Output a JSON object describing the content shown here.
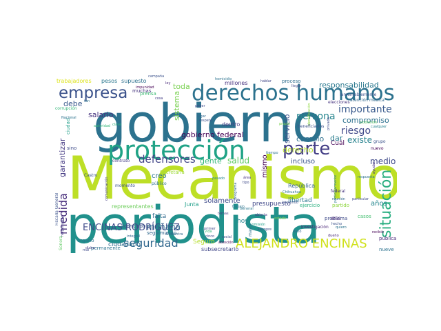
{
  "wordcloud": {
    "words": [
      {
        "text": "gobierno",
        "color": "#2c728e"
      },
      {
        "text": "Mecanismo",
        "color": "#bddf26"
      },
      {
        "text": "periodista",
        "color": "#21918c"
      },
      {
        "text": "protección",
        "color": "#20a386"
      },
      {
        "text": "derechos humanos",
        "color": "#2c728e"
      },
      {
        "text": "empresa",
        "color": "#3b528b"
      },
      {
        "text": "parte",
        "color": "#433e85"
      },
      {
        "text": "situación",
        "color": "#28ae80"
      },
      {
        "text": "ALEJANDRO ENCINAS",
        "color": "#d0e11c"
      },
      {
        "text": "ENCINAS RODRÍGUEZ",
        "color": "#3e4a89"
      },
      {
        "text": "seguridad",
        "color": "#31688e"
      },
      {
        "text": "medida",
        "color": "#472d7b"
      },
      {
        "text": "defensores",
        "color": "#414487"
      },
      {
        "text": "responsabilidad",
        "color": "#2a788e"
      },
      {
        "text": "importante",
        "color": "#38598c"
      },
      {
        "text": "persona",
        "color": "#25858e"
      },
      {
        "text": "riesgo",
        "color": "#3f4889"
      },
      {
        "text": "compromiso",
        "color": "#2d708e"
      },
      {
        "text": "gobierno federal",
        "color": "#440154"
      },
      {
        "text": "mañana",
        "color": "#31688e"
      },
      {
        "text": "salud",
        "color": "#5ec962"
      },
      {
        "text": "gente",
        "color": "#35b779"
      },
      {
        "text": "medio",
        "color": "#3e4989"
      },
      {
        "text": "derecho",
        "color": "#b5de2b"
      },
      {
        "text": "existe",
        "color": "#26828e"
      },
      {
        "text": "cambio",
        "color": "#2e6f8e"
      },
      {
        "text": "dar",
        "color": "#287c8e"
      },
      {
        "text": "servicio",
        "color": "#3b528b"
      },
      {
        "text": "ciudadano",
        "color": "#2f6c8e"
      },
      {
        "text": "Seguro",
        "color": "#b5de2b"
      },
      {
        "text": "solamente",
        "color": "#3e4a89"
      },
      {
        "text": "debe",
        "color": "#38588c"
      },
      {
        "text": "salario",
        "color": "#46337f"
      },
      {
        "text": "toda",
        "color": "#7ad151"
      },
      {
        "text": "sistema",
        "color": "#7ad151"
      },
      {
        "text": "creo",
        "color": "#2b748e"
      },
      {
        "text": "mismo",
        "color": "#440154"
      },
      {
        "text": "incluso",
        "color": "#3a548c"
      },
      {
        "text": "garantizar",
        "color": "#443983"
      },
      {
        "text": "años",
        "color": "#24868e"
      },
      {
        "text": "Cuál",
        "color": "#440154"
      },
      {
        "text": "Junta",
        "color": "#1f9e89"
      },
      {
        "text": "falta",
        "color": "#306a8e"
      },
      {
        "text": "hoy",
        "color": "#25848e"
      },
      {
        "text": "presupuesto",
        "color": "#3f4788"
      },
      {
        "text": "subsecretario",
        "color": "#404688"
      },
      {
        "text": "libertad",
        "color": "#2a788e"
      },
      {
        "text": "República",
        "color": "#33638d"
      },
      {
        "text": "supuesto",
        "color": "#2d708e"
      },
      {
        "text": "pesos",
        "color": "#2a778e"
      },
      {
        "text": "trabajadores",
        "color": "#dde318"
      },
      {
        "text": "millones",
        "color": "#46307e"
      },
      {
        "text": "proceso",
        "color": "#2e6e8e"
      },
      {
        "text": "prensa",
        "color": "#3dbc74"
      },
      {
        "text": "muchas",
        "color": "#46337f"
      },
      {
        "text": "representantes",
        "color": "#6ccd5a"
      },
      {
        "text": "Secretaría",
        "color": "#9fda3a"
      },
      {
        "text": "organo",
        "color": "#2a778e"
      },
      {
        "text": "seguimiento",
        "color": "#31688e"
      },
      {
        "text": "licenciado",
        "color": "#3b528b"
      },
      {
        "text": "permanente",
        "color": "#2c728e"
      },
      {
        "text": "dentro",
        "color": "#433e85"
      },
      {
        "text": "sino",
        "color": "#3e4c8a"
      },
      {
        "text": "contrato",
        "color": "#433d84"
      },
      {
        "text": "público",
        "color": "#2c728e"
      },
      {
        "text": "momento",
        "color": "#3b528b"
      },
      {
        "text": "investigación",
        "color": "#482475"
      },
      {
        "text": "ejercicio",
        "color": "#29af7f"
      },
      {
        "text": "partido",
        "color": "#90d743"
      },
      {
        "text": "casos",
        "color": "#44bf70"
      },
      {
        "text": "nueve",
        "color": "#2c728e"
      },
      {
        "text": "grupo",
        "color": "#3b528b"
      },
      {
        "text": "nuevo",
        "color": "#440154"
      },
      {
        "text": "pública",
        "color": "#482878"
      },
      {
        "text": "problema",
        "color": "#3e4a89"
      },
      {
        "text": "atención médica",
        "color": "#31688e"
      },
      {
        "text": "población",
        "color": "#5ec962"
      },
      {
        "text": "cualquier",
        "color": "#26828e"
      },
      {
        "text": "lamentablemente",
        "color": "#3b528b"
      },
      {
        "text": "elecciones",
        "color": "#46337f"
      },
      {
        "text": "corrupción",
        "color": "#35b779"
      },
      {
        "text": "homicidio",
        "color": "#2c728e"
      },
      {
        "text": "hablar",
        "color": "#404688"
      },
      {
        "text": "llegar",
        "color": "#3e4a89"
      },
      {
        "text": "ley",
        "color": "#482878"
      },
      {
        "text": "campaña",
        "color": "#3b528b"
      },
      {
        "text": "impunidad",
        "color": "#440154"
      },
      {
        "text": "cosa",
        "color": "#433e85"
      },
      {
        "text": "poder",
        "color": "#3e4989"
      },
      {
        "text": "lugar",
        "color": "#31688e"
      },
      {
        "text": "respeto",
        "color": "#3b528b"
      },
      {
        "text": "pasado",
        "color": "#26828e"
      },
      {
        "text": "propio",
        "color": "#7ad151"
      },
      {
        "text": "Nacional",
        "color": "#2c728e"
      },
      {
        "text": "autoridad",
        "color": "#35b779"
      },
      {
        "text": "ciudad",
        "color": "#1f9e89"
      },
      {
        "text": "clave",
        "color": "#29af7f"
      },
      {
        "text": "General",
        "color": "#2a778e"
      },
      {
        "text": "Comisión",
        "color": "#1f9e89"
      },
      {
        "text": "siempre",
        "color": "#3b528b"
      },
      {
        "text": "temas",
        "color": "#433e85"
      },
      {
        "text": "trabajo",
        "color": "#2c728e"
      },
      {
        "text": "tipo",
        "color": "#3e4989"
      },
      {
        "text": "área",
        "color": "#46337f"
      },
      {
        "text": "haciendo",
        "color": "#3b528b"
      },
      {
        "text": "reunión",
        "color": "#31688e"
      },
      {
        "text": "particular",
        "color": "#3e4a89"
      },
      {
        "text": "dueño",
        "color": "#482878"
      },
      {
        "text": "quiero",
        "color": "#2c728e"
      },
      {
        "text": "social",
        "color": "#3b528b"
      },
      {
        "text": "atención",
        "color": "#440154"
      },
      {
        "text": "primer",
        "color": "#3e4989"
      },
      {
        "text": "encuentra",
        "color": "#31688e"
      },
      {
        "text": "estado",
        "color": "#7ad151"
      },
      {
        "text": "Chihuahua",
        "color": "#2c728e"
      },
      {
        "text": "abierta",
        "color": "#433e85"
      },
      {
        "text": "federal",
        "color": "#46337f"
      },
      {
        "text": "IMSS",
        "color": "#482878"
      },
      {
        "text": "hecho",
        "color": "#3b528b"
      },
      {
        "text": "daño",
        "color": "#31688e"
      },
      {
        "text": "mayor",
        "color": "#2c728e"
      },
      {
        "text": "cinco",
        "color": "#3e4a89"
      },
      {
        "text": "vida",
        "color": "#35b779"
      },
      {
        "text": "Castro",
        "color": "#3b528b"
      },
      {
        "text": "tan",
        "color": "#2c728e"
      },
      {
        "text": "dicho",
        "color": "#433e85"
      },
      {
        "text": "mal",
        "color": "#3e4989"
      },
      {
        "text": "Sonora",
        "color": "#5ec962"
      },
      {
        "text": "identificación",
        "color": "#90d743"
      },
      {
        "text": "integral",
        "color": "#31688e"
      },
      {
        "text": "recibió",
        "color": "#440154"
      },
      {
        "text": "tiempo",
        "color": "#2c728e"
      },
      {
        "text": "Fiscalía General",
        "color": "#3b528b"
      },
      {
        "text": "responsable",
        "color": "#433e85"
      },
      {
        "text": "privada",
        "color": "#3e4a89"
      },
      {
        "text": "particularmente",
        "color": "#2a788e"
      },
      {
        "text": "ayudar",
        "color": "#46337f"
      },
      {
        "text": "beneficiarios",
        "color": "#3b528b"
      },
      {
        "text": "respuesta",
        "color": "#2c728e"
      },
      {
        "text": "comunicación",
        "color": "#433e85"
      },
      {
        "text": "programa",
        "color": "#31688e"
      }
    ]
  }
}
